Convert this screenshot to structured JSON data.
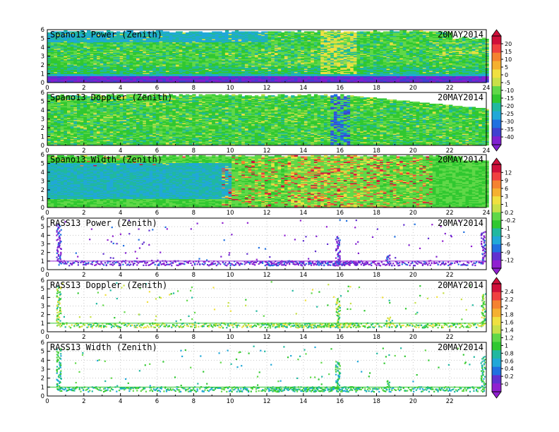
{
  "figure": {
    "date": "20MAY2014"
  },
  "chart_data": [
    {
      "type": "heatmap",
      "title": "Spano13 Power (Zenith)",
      "xlim": [
        0,
        24
      ],
      "ylim": [
        0,
        6
      ],
      "xticks": [
        "0",
        "2",
        "4",
        "6",
        "8",
        "10",
        "12",
        "14",
        "16",
        "18",
        "20",
        "22",
        "24"
      ],
      "yticks": [
        "0",
        "1",
        "2",
        "3",
        "4",
        "5",
        "6"
      ],
      "colorbar": "power"
    },
    {
      "type": "heatmap",
      "title": "Spano13 Doppler (Zenith)",
      "xlim": [
        0,
        24
      ],
      "ylim": [
        0,
        6
      ],
      "xticks": [
        "0",
        "2",
        "4",
        "6",
        "8",
        "10",
        "12",
        "14",
        "16",
        "18",
        "20",
        "22",
        "24"
      ],
      "yticks": [
        "0",
        "1",
        "2",
        "3",
        "4",
        "5",
        "6"
      ],
      "colorbar": "power"
    },
    {
      "type": "heatmap",
      "title": "Spano13 Width (Zenith)",
      "xlim": [
        0,
        24
      ],
      "ylim": [
        0,
        6
      ],
      "xticks": [
        "0",
        "2",
        "4",
        "6",
        "8",
        "10",
        "12",
        "14",
        "16",
        "18",
        "20",
        "22",
        "24"
      ],
      "yticks": [
        "0",
        "1",
        "2",
        "3",
        "4",
        "5",
        "6"
      ],
      "colorbar": "width"
    },
    {
      "type": "scatter",
      "title": "RASS13 Power (Zenith)",
      "xlim": [
        0,
        24
      ],
      "ylim": [
        0,
        6
      ],
      "xticks": [
        "0",
        "2",
        "4",
        "6",
        "8",
        "10",
        "12",
        "14",
        "16",
        "18",
        "20",
        "22"
      ],
      "yticks": [
        "0",
        "1",
        "2",
        "3",
        "4",
        "5",
        "6"
      ],
      "colorbar": "width"
    },
    {
      "type": "scatter",
      "title": "RASS13 Doppler (Zenith)",
      "xlim": [
        0,
        24
      ],
      "ylim": [
        0,
        6
      ],
      "xticks": [
        "0",
        "2",
        "4",
        "6",
        "8",
        "10",
        "12",
        "14",
        "16",
        "18",
        "20",
        "22"
      ],
      "yticks": [
        "0",
        "1",
        "2",
        "3",
        "4",
        "5",
        "6"
      ],
      "colorbar": "rass"
    },
    {
      "type": "scatter",
      "title": "RASS13 Width (Zenith)",
      "xlim": [
        0,
        24
      ],
      "ylim": [
        0,
        6
      ],
      "xticks": [
        "0",
        "2",
        "4",
        "6",
        "8",
        "10",
        "12",
        "14",
        "16",
        "18",
        "20",
        "22"
      ],
      "yticks": [
        "0",
        "1",
        "2",
        "3",
        "4",
        "5",
        "6"
      ],
      "colorbar": "rass"
    }
  ],
  "colorbars": {
    "power": {
      "labels": [
        "20",
        "15",
        "10",
        "5",
        "0",
        "-5",
        "-10",
        "-15",
        "-20",
        "-25",
        "-30",
        "-35",
        "-40"
      ],
      "colors": [
        "#d0103a",
        "#f04040",
        "#f58230",
        "#f5b030",
        "#f0e040",
        "#c8e048",
        "#60d848",
        "#30c830",
        "#20b8a0",
        "#20a8d8",
        "#2070e0",
        "#4040d0",
        "#8020d0"
      ]
    },
    "width": {
      "labels": [
        "12",
        "9",
        "6",
        "3",
        "1",
        "0.2",
        "-0.2",
        "-1",
        "-3",
        "-6",
        "-9",
        "-12"
      ],
      "colors": [
        "#d0103a",
        "#f04040",
        "#f58230",
        "#f5b030",
        "#f0e040",
        "#c8e048",
        "#60d848",
        "#30c830",
        "#20b8a0",
        "#20a8d8",
        "#2070e0",
        "#6030d0",
        "#9020d0"
      ]
    },
    "rass": {
      "labels": [
        "2.4",
        "2.2",
        "2",
        "1.8",
        "1.6",
        "1.4",
        "1.2",
        "1",
        "0.8",
        "0.6",
        "0.4",
        "0.2",
        "0"
      ],
      "colors": [
        "#d0103a",
        "#f04040",
        "#f58230",
        "#f5b030",
        "#f0e040",
        "#c8e048",
        "#60d848",
        "#30c830",
        "#20b8a0",
        "#20a8d8",
        "#2070e0",
        "#6030d0",
        "#9020d0"
      ]
    }
  }
}
